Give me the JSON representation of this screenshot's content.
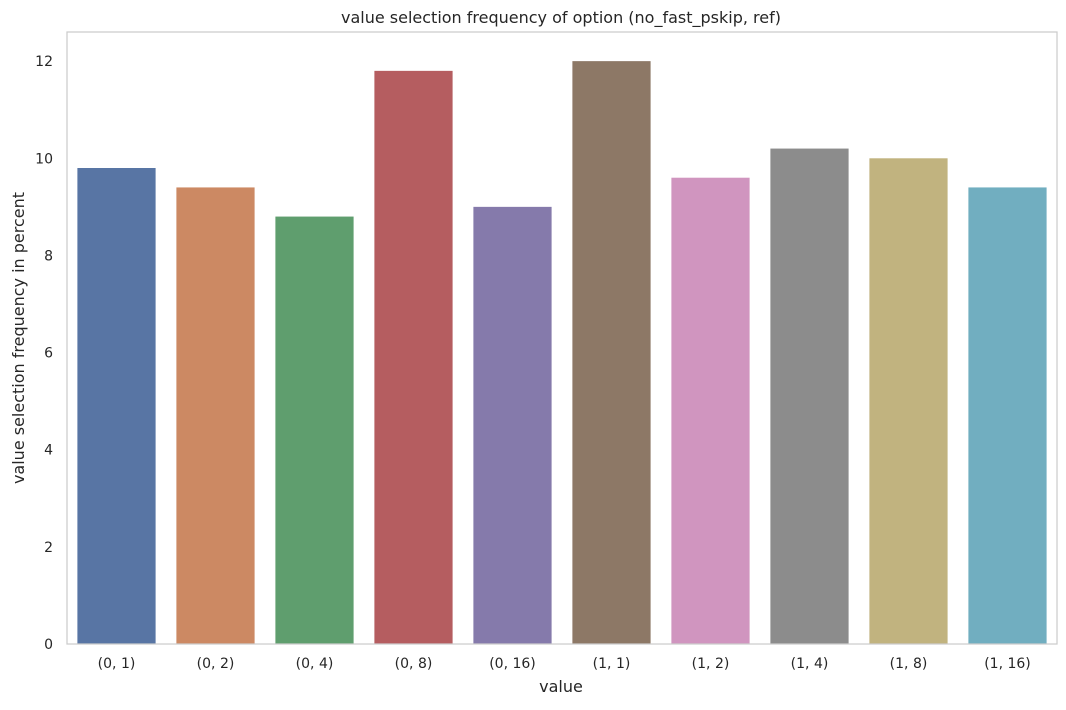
{
  "chart_data": {
    "type": "bar",
    "title": "value selection frequency of option (no_fast_pskip, ref)",
    "xlabel": "value",
    "ylabel": "value selection frequency in percent",
    "categories": [
      "(0, 1)",
      "(0, 2)",
      "(0, 4)",
      "(0, 8)",
      "(0, 16)",
      "(1, 1)",
      "(1, 2)",
      "(1, 4)",
      "(1, 8)",
      "(1, 16)"
    ],
    "values": [
      9.8,
      9.4,
      8.8,
      11.8,
      9.0,
      12.0,
      9.6,
      10.2,
      10.0,
      9.4
    ],
    "colors": [
      "#5875a4",
      "#cc8963",
      "#5f9e6e",
      "#b55d60",
      "#857aab",
      "#8d7866",
      "#d095bf",
      "#8c8c8c",
      "#c1b37f",
      "#71aec0"
    ],
    "ylim": [
      0,
      12.6
    ],
    "yticks": [
      "0",
      "2",
      "4",
      "6",
      "8",
      "10",
      "12"
    ],
    "grid": false,
    "legend": "none"
  }
}
